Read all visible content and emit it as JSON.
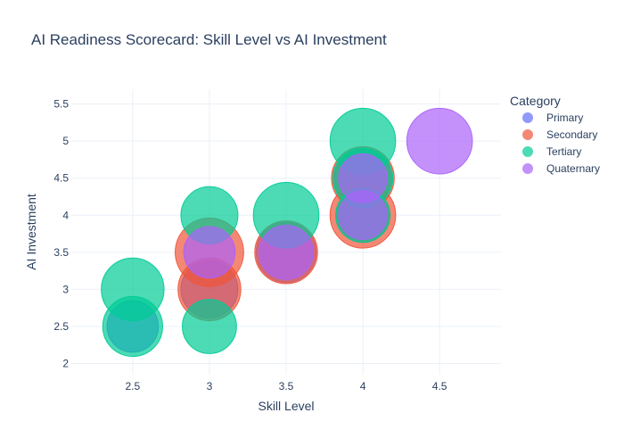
{
  "chart_data": {
    "type": "scatter",
    "title": "AI Readiness Scorecard: Skill Level vs AI Investment",
    "xlabel": "Skill Level",
    "ylabel": "AI Investment",
    "xlim": [
      2.1,
      4.9
    ],
    "ylim": [
      1.85,
      5.7
    ],
    "x_ticks": [
      2.5,
      3,
      3.5,
      4,
      4.5
    ],
    "x_tick_labels": [
      "2.5",
      "3",
      "3.5",
      "4",
      "4.5"
    ],
    "y_ticks": [
      2,
      2.5,
      3,
      3.5,
      4,
      4.5,
      5,
      5.5
    ],
    "y_tick_labels": [
      "2",
      "2.5",
      "3",
      "3.5",
      "4",
      "4.5",
      "5",
      "5.5"
    ],
    "grid": true,
    "legend": {
      "title": "Category",
      "placement": "top-right"
    },
    "series": [
      {
        "name": "Primary",
        "color": "#636efa",
        "points": [
          {
            "x": 2.5,
            "y": 2.5,
            "size": 18
          },
          {
            "x": 3.0,
            "y": 3.0,
            "size": 20
          },
          {
            "x": 3.5,
            "y": 3.5,
            "size": 21
          },
          {
            "x": 4.0,
            "y": 4.5,
            "size": 20
          },
          {
            "x": 4.0,
            "y": 4.0,
            "size": 19
          }
        ]
      },
      {
        "name": "Secondary",
        "color": "#ef553b",
        "points": [
          {
            "x": 3.0,
            "y": 3.5,
            "size": 24
          },
          {
            "x": 3.0,
            "y": 3.0,
            "size": 22
          },
          {
            "x": 3.5,
            "y": 3.5,
            "size": 22
          },
          {
            "x": 4.0,
            "y": 4.0,
            "size": 23
          },
          {
            "x": 4.0,
            "y": 4.5,
            "size": 22
          }
        ]
      },
      {
        "name": "Tertiary",
        "color": "#00cc96",
        "points": [
          {
            "x": 2.5,
            "y": 3.0,
            "size": 22
          },
          {
            "x": 2.5,
            "y": 2.5,
            "size": 21
          },
          {
            "x": 3.0,
            "y": 4.0,
            "size": 20
          },
          {
            "x": 3.0,
            "y": 2.5,
            "size": 19
          },
          {
            "x": 3.5,
            "y": 4.0,
            "size": 23
          },
          {
            "x": 4.0,
            "y": 5.0,
            "size": 23
          },
          {
            "x": 4.0,
            "y": 4.5,
            "size": 21
          },
          {
            "x": 4.0,
            "y": 4.0,
            "size": 19
          }
        ]
      },
      {
        "name": "Quaternary",
        "color": "#ab63fa",
        "points": [
          {
            "x": 3.0,
            "y": 3.5,
            "size": 18
          },
          {
            "x": 3.5,
            "y": 3.5,
            "size": 19
          },
          {
            "x": 4.0,
            "y": 4.5,
            "size": 17
          },
          {
            "x": 4.0,
            "y": 4.0,
            "size": 17
          },
          {
            "x": 4.5,
            "y": 5.0,
            "size": 23
          }
        ]
      }
    ]
  }
}
